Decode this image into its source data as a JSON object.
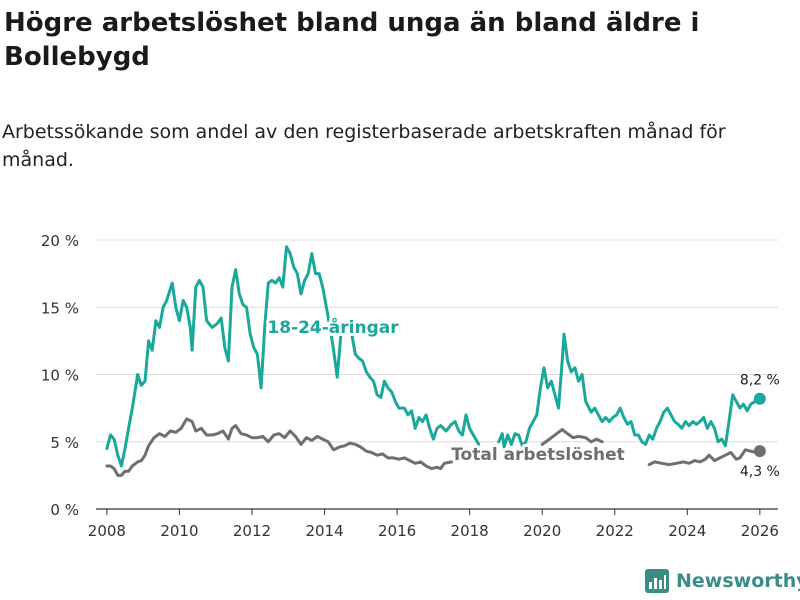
{
  "title": "Högre arbetslöshet bland unga än bland äldre i Bollebygd",
  "subtitle": "Arbetssökande som andel av den registerbaserade arbetskraften månad för månad.",
  "brand": {
    "name": "Newsworthy",
    "color": "#3a8c84"
  },
  "chart_data": {
    "type": "line",
    "xlabel": "",
    "ylabel": "",
    "xlim": [
      2007.7,
      2026.5
    ],
    "ylim": [
      0,
      20
    ],
    "x_ticks": [
      {
        "value": 2008,
        "label": "2008"
      },
      {
        "value": 2010,
        "label": "2010"
      },
      {
        "value": 2012,
        "label": "2012"
      },
      {
        "value": 2014,
        "label": "2014"
      },
      {
        "value": 2016,
        "label": "2016"
      },
      {
        "value": 2018,
        "label": "2018"
      },
      {
        "value": 2020,
        "label": "2020"
      },
      {
        "value": 2022,
        "label": "2022"
      },
      {
        "value": 2024,
        "label": "2024"
      },
      {
        "value": 2026,
        "label": "2026"
      }
    ],
    "y_ticks": [
      {
        "value": 0,
        "label": "0 %"
      },
      {
        "value": 5,
        "label": "5 %"
      },
      {
        "value": 10,
        "label": "10 %"
      },
      {
        "value": 15,
        "label": "15 %"
      },
      {
        "value": 20,
        "label": "20 %"
      }
    ],
    "grid": true,
    "series": [
      {
        "name": "18-24-åringar",
        "color": "#1aa89a",
        "end_label": "8,2 %",
        "points": [
          [
            2008.0,
            4.5
          ],
          [
            2008.1,
            5.5
          ],
          [
            2008.2,
            5.2
          ],
          [
            2008.3,
            4.0
          ],
          [
            2008.4,
            3.2
          ],
          [
            2008.5,
            4.5
          ],
          [
            2008.6,
            6.0
          ],
          [
            2008.7,
            7.5
          ],
          [
            2008.85,
            10.0
          ],
          [
            2008.95,
            9.2
          ],
          [
            2009.05,
            9.5
          ],
          [
            2009.15,
            12.5
          ],
          [
            2009.25,
            11.8
          ],
          [
            2009.35,
            14.0
          ],
          [
            2009.45,
            13.5
          ],
          [
            2009.55,
            15.0
          ],
          [
            2009.65,
            15.5
          ],
          [
            2009.8,
            16.8
          ],
          [
            2009.9,
            15.0
          ],
          [
            2010.0,
            14.0
          ],
          [
            2010.1,
            15.5
          ],
          [
            2010.2,
            15.0
          ],
          [
            2010.3,
            13.5
          ],
          [
            2010.35,
            11.8
          ],
          [
            2010.45,
            16.5
          ],
          [
            2010.55,
            17.0
          ],
          [
            2010.65,
            16.5
          ],
          [
            2010.75,
            14.0
          ],
          [
            2010.9,
            13.5
          ],
          [
            2011.05,
            13.8
          ],
          [
            2011.15,
            14.2
          ],
          [
            2011.25,
            12.0
          ],
          [
            2011.35,
            11.0
          ],
          [
            2011.45,
            16.5
          ],
          [
            2011.55,
            17.8
          ],
          [
            2011.65,
            16.0
          ],
          [
            2011.75,
            15.2
          ],
          [
            2011.85,
            15.0
          ],
          [
            2011.95,
            13.0
          ],
          [
            2012.05,
            12.0
          ],
          [
            2012.15,
            11.5
          ],
          [
            2012.25,
            9.0
          ],
          [
            2012.35,
            13.5
          ],
          [
            2012.45,
            16.8
          ],
          [
            2012.55,
            17.0
          ],
          [
            2012.65,
            16.8
          ],
          [
            2012.75,
            17.2
          ],
          [
            2012.85,
            16.5
          ],
          [
            2012.95,
            19.5
          ],
          [
            2013.05,
            19.0
          ],
          [
            2013.15,
            18.0
          ],
          [
            2013.25,
            17.5
          ],
          [
            2013.35,
            16.0
          ],
          [
            2013.45,
            17.0
          ],
          [
            2013.55,
            17.5
          ],
          [
            2013.65,
            19.0
          ],
          [
            2013.75,
            17.5
          ],
          [
            2013.85,
            17.5
          ],
          [
            2013.95,
            16.5
          ],
          [
            2014.05,
            15.0
          ],
          [
            2014.15,
            13.5
          ],
          [
            2014.25,
            11.8
          ],
          [
            2014.35,
            9.8
          ],
          [
            2014.45,
            13.0
          ],
          [
            2014.55,
            13.5
          ],
          [
            2014.65,
            13.8
          ],
          [
            2014.75,
            13.0
          ],
          [
            2014.85,
            11.5
          ],
          [
            2014.95,
            11.2
          ],
          [
            2015.05,
            11.0
          ],
          [
            2015.15,
            10.2
          ],
          [
            2015.25,
            9.8
          ],
          [
            2015.35,
            9.5
          ],
          [
            2015.45,
            8.5
          ],
          [
            2015.55,
            8.3
          ],
          [
            2015.65,
            9.5
          ],
          [
            2015.75,
            9.0
          ],
          [
            2015.85,
            8.7
          ],
          [
            2015.95,
            8.0
          ],
          [
            2016.05,
            7.5
          ],
          [
            2016.2,
            7.5
          ],
          [
            2016.3,
            7.0
          ],
          [
            2016.4,
            7.3
          ],
          [
            2016.5,
            6.0
          ],
          [
            2016.6,
            6.8
          ],
          [
            2016.7,
            6.5
          ],
          [
            2016.8,
            7.0
          ],
          [
            2016.9,
            6.0
          ],
          [
            2017.0,
            5.2
          ],
          [
            2017.1,
            6.0
          ],
          [
            2017.2,
            6.2
          ],
          [
            2017.35,
            5.8
          ],
          [
            2017.5,
            6.3
          ],
          [
            2017.6,
            6.5
          ],
          [
            2017.7,
            5.8
          ],
          [
            2017.8,
            5.5
          ],
          [
            2017.9,
            7.0
          ],
          [
            2018.0,
            6.0
          ],
          [
            2018.1,
            5.5
          ],
          [
            2018.25,
            4.8
          ]
        ]
      },
      {
        "name": "Total arbetslöshet",
        "color": "#706f6f",
        "end_label": "4,3 %",
        "points": [
          [
            2008.0,
            3.2
          ],
          [
            2008.1,
            3.2
          ],
          [
            2008.2,
            3.0
          ],
          [
            2008.3,
            2.5
          ],
          [
            2008.4,
            2.5
          ],
          [
            2008.5,
            2.8
          ],
          [
            2008.6,
            2.8
          ],
          [
            2008.7,
            3.2
          ],
          [
            2008.85,
            3.5
          ],
          [
            2008.95,
            3.6
          ],
          [
            2009.05,
            4.0
          ],
          [
            2009.15,
            4.7
          ],
          [
            2009.3,
            5.3
          ],
          [
            2009.45,
            5.6
          ],
          [
            2009.6,
            5.4
          ],
          [
            2009.75,
            5.8
          ],
          [
            2009.9,
            5.7
          ],
          [
            2010.05,
            6.0
          ],
          [
            2010.2,
            6.7
          ],
          [
            2010.35,
            6.5
          ],
          [
            2010.45,
            5.8
          ],
          [
            2010.6,
            6.0
          ],
          [
            2010.75,
            5.5
          ],
          [
            2010.9,
            5.5
          ],
          [
            2011.05,
            5.6
          ],
          [
            2011.2,
            5.8
          ],
          [
            2011.35,
            5.2
          ],
          [
            2011.45,
            6.0
          ],
          [
            2011.55,
            6.2
          ],
          [
            2011.7,
            5.6
          ],
          [
            2011.85,
            5.5
          ],
          [
            2012.0,
            5.3
          ],
          [
            2012.15,
            5.3
          ],
          [
            2012.3,
            5.4
          ],
          [
            2012.45,
            5.0
          ],
          [
            2012.6,
            5.5
          ],
          [
            2012.75,
            5.6
          ],
          [
            2012.9,
            5.3
          ],
          [
            2013.05,
            5.8
          ],
          [
            2013.2,
            5.4
          ],
          [
            2013.35,
            4.8
          ],
          [
            2013.5,
            5.3
          ],
          [
            2013.65,
            5.1
          ],
          [
            2013.8,
            5.4
          ],
          [
            2013.95,
            5.2
          ],
          [
            2014.1,
            5.0
          ],
          [
            2014.25,
            4.4
          ],
          [
            2014.4,
            4.6
          ],
          [
            2014.55,
            4.7
          ],
          [
            2014.7,
            4.9
          ],
          [
            2014.85,
            4.8
          ],
          [
            2015.0,
            4.6
          ],
          [
            2015.15,
            4.3
          ],
          [
            2015.3,
            4.2
          ],
          [
            2015.45,
            4.0
          ],
          [
            2015.6,
            4.1
          ],
          [
            2015.75,
            3.8
          ],
          [
            2015.9,
            3.8
          ],
          [
            2016.05,
            3.7
          ],
          [
            2016.2,
            3.8
          ],
          [
            2016.35,
            3.6
          ],
          [
            2016.5,
            3.4
          ],
          [
            2016.65,
            3.5
          ],
          [
            2016.8,
            3.2
          ],
          [
            2016.95,
            3.0
          ],
          [
            2017.1,
            3.1
          ],
          [
            2017.2,
            3.0
          ],
          [
            2017.3,
            3.4
          ],
          [
            2017.5,
            3.5
          ]
        ]
      }
    ],
    "series_segments_extra": [
      {
        "series": "18-24-åringar",
        "points": [
          [
            2018.8,
            5.0
          ],
          [
            2018.9,
            5.6
          ],
          [
            2018.95,
            4.6
          ],
          [
            2019.05,
            5.5
          ],
          [
            2019.15,
            4.8
          ],
          [
            2019.25,
            5.6
          ],
          [
            2019.35,
            5.5
          ],
          [
            2019.45,
            4.7
          ],
          [
            2019.55,
            5.0
          ],
          [
            2019.65,
            6.0
          ],
          [
            2019.75,
            6.5
          ],
          [
            2019.85,
            7.0
          ],
          [
            2019.95,
            9.0
          ],
          [
            2020.05,
            10.5
          ],
          [
            2020.15,
            9.0
          ],
          [
            2020.25,
            9.5
          ],
          [
            2020.35,
            8.5
          ],
          [
            2020.45,
            7.5
          ],
          [
            2020.55,
            11.0
          ],
          [
            2020.6,
            13.0
          ],
          [
            2020.7,
            11.0
          ],
          [
            2020.8,
            10.2
          ],
          [
            2020.9,
            10.5
          ],
          [
            2021.0,
            9.5
          ],
          [
            2021.1,
            10.0
          ],
          [
            2021.2,
            8.0
          ],
          [
            2021.35,
            7.2
          ],
          [
            2021.45,
            7.5
          ],
          [
            2021.55,
            7.0
          ],
          [
            2021.65,
            6.5
          ],
          [
            2021.75,
            6.8
          ],
          [
            2021.85,
            6.5
          ],
          [
            2021.95,
            6.8
          ],
          [
            2022.05,
            7.0
          ],
          [
            2022.15,
            7.5
          ],
          [
            2022.25,
            6.8
          ],
          [
            2022.35,
            6.3
          ],
          [
            2022.45,
            6.5
          ],
          [
            2022.55,
            5.5
          ],
          [
            2022.65,
            5.5
          ],
          [
            2022.75,
            5.0
          ],
          [
            2022.85,
            4.8
          ],
          [
            2022.95,
            5.5
          ],
          [
            2023.05,
            5.2
          ],
          [
            2023.15,
            6.0
          ],
          [
            2023.25,
            6.5
          ],
          [
            2023.35,
            7.2
          ],
          [
            2023.45,
            7.5
          ],
          [
            2023.55,
            7.0
          ],
          [
            2023.65,
            6.5
          ],
          [
            2023.75,
            6.3
          ],
          [
            2023.85,
            6.0
          ],
          [
            2023.95,
            6.5
          ],
          [
            2024.05,
            6.2
          ],
          [
            2024.15,
            6.5
          ],
          [
            2024.25,
            6.3
          ],
          [
            2024.35,
            6.5
          ],
          [
            2024.45,
            6.8
          ],
          [
            2024.55,
            6.0
          ],
          [
            2024.65,
            6.5
          ],
          [
            2024.75,
            6.0
          ],
          [
            2024.85,
            5.0
          ],
          [
            2024.95,
            5.2
          ],
          [
            2025.05,
            4.7
          ],
          [
            2025.15,
            6.5
          ],
          [
            2025.25,
            8.5
          ],
          [
            2025.35,
            8.0
          ],
          [
            2025.45,
            7.5
          ],
          [
            2025.55,
            7.8
          ],
          [
            2025.65,
            7.3
          ],
          [
            2025.75,
            7.8
          ],
          [
            2026.0,
            8.2
          ]
        ]
      },
      {
        "series": "Total arbetslöshet",
        "points": [
          [
            2022.95,
            3.3
          ],
          [
            2023.1,
            3.5
          ],
          [
            2023.3,
            3.4
          ],
          [
            2023.5,
            3.3
          ],
          [
            2023.7,
            3.4
          ],
          [
            2023.9,
            3.5
          ],
          [
            2024.05,
            3.4
          ],
          [
            2024.2,
            3.6
          ],
          [
            2024.35,
            3.5
          ],
          [
            2024.5,
            3.7
          ],
          [
            2024.6,
            4.0
          ],
          [
            2024.75,
            3.6
          ],
          [
            2024.9,
            3.8
          ],
          [
            2025.05,
            4.0
          ],
          [
            2025.2,
            4.2
          ],
          [
            2025.35,
            3.7
          ],
          [
            2025.45,
            3.8
          ],
          [
            2025.6,
            4.4
          ],
          [
            2025.75,
            4.3
          ],
          [
            2025.9,
            4.2
          ],
          [
            2026.0,
            4.3
          ]
        ]
      },
      {
        "series": "Total arbetslöshet",
        "points": [
          [
            2020.0,
            4.8
          ],
          [
            2020.2,
            5.2
          ],
          [
            2020.4,
            5.6
          ],
          [
            2020.55,
            5.9
          ],
          [
            2020.7,
            5.6
          ],
          [
            2020.85,
            5.3
          ],
          [
            2021.0,
            5.4
          ],
          [
            2021.2,
            5.3
          ],
          [
            2021.35,
            5.0
          ],
          [
            2021.5,
            5.2
          ],
          [
            2021.65,
            5.0
          ]
        ]
      }
    ],
    "annotations": [
      {
        "text": "18-24-åringar",
        "series": "18-24-åringar"
      },
      {
        "text": "Total arbetslöshet",
        "series": "Total arbetslöshet"
      }
    ]
  }
}
